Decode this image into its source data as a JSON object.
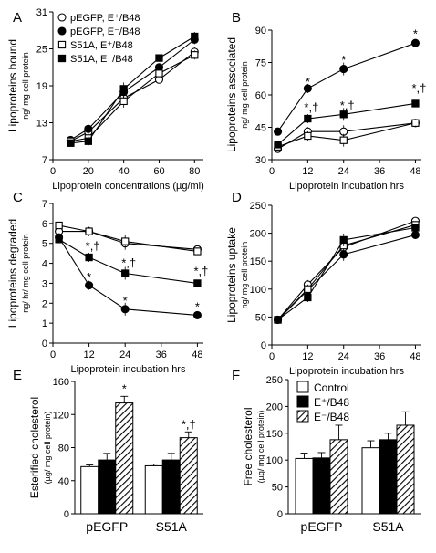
{
  "chart_data": [
    {
      "panel": "A",
      "type": "line",
      "xlabel": "Lipoprotein concentrations (µg/ml)",
      "ylabel": [
        "Lipoproteins bound",
        "ng/ mg cell protein"
      ],
      "xlim": [
        0,
        85
      ],
      "ylim": [
        7,
        31
      ],
      "xticks": [
        0,
        20,
        40,
        60,
        80
      ],
      "yticks": [
        7,
        13,
        19,
        25,
        31
      ],
      "legend_position": "top-left",
      "series": [
        {
          "name": "pEGFP, E⁺/B48",
          "marker": "circle-open",
          "x": [
            10,
            20,
            40,
            60,
            80
          ],
          "y": [
            10.0,
            11.5,
            17.0,
            20.0,
            24.5
          ]
        },
        {
          "name": "pEGFP, E⁻/B48",
          "marker": "circle-filled",
          "x": [
            10,
            20,
            40,
            60,
            80
          ],
          "y": [
            10.2,
            12.0,
            18.0,
            22.0,
            26.5
          ]
        },
        {
          "name": "S51A, E⁺/B48",
          "marker": "square-open",
          "x": [
            10,
            20,
            40,
            60,
            80
          ],
          "y": [
            10.0,
            10.5,
            16.5,
            21.0,
            24.0
          ]
        },
        {
          "name": "S51A, E⁻/B48",
          "marker": "square-filled",
          "x": [
            10,
            20,
            40,
            60,
            80
          ],
          "y": [
            9.7,
            10.0,
            18.5,
            23.5,
            27.0
          ]
        }
      ]
    },
    {
      "panel": "B",
      "type": "line",
      "xlabel": "Lipoprotein incubation hrs",
      "ylabel": [
        "Lipoproteins associated",
        "ng/ mg cell protein"
      ],
      "xlim": [
        0,
        50
      ],
      "ylim": [
        30,
        90
      ],
      "xticks": [
        0,
        12,
        24,
        36,
        48
      ],
      "yticks": [
        30,
        45,
        60,
        75,
        90
      ],
      "series": [
        {
          "name": "pEGFP, E⁺/B48",
          "marker": "circle-open",
          "x": [
            2,
            12,
            24,
            48
          ],
          "y": [
            35,
            43,
            43,
            47
          ]
        },
        {
          "name": "pEGFP, E⁻/B48",
          "marker": "circle-filled",
          "x": [
            2,
            12,
            24,
            48
          ],
          "y": [
            43,
            63,
            72,
            84
          ]
        },
        {
          "name": "S51A, E⁺/B48",
          "marker": "square-open",
          "x": [
            2,
            12,
            24,
            48
          ],
          "y": [
            36,
            41,
            39,
            47
          ]
        },
        {
          "name": "S51A, E⁻/B48",
          "marker": "square-filled",
          "x": [
            2,
            12,
            24,
            48
          ],
          "y": [
            37,
            49,
            51,
            56
          ]
        }
      ],
      "annotations": [
        {
          "text": "*",
          "x": 12,
          "y": 66
        },
        {
          "text": "*",
          "x": 24,
          "y": 76
        },
        {
          "text": "*",
          "x": 48,
          "y": 88
        },
        {
          "text": "*,†",
          "x": 12,
          "y": 54
        },
        {
          "text": "*,†",
          "x": 24,
          "y": 55
        },
        {
          "text": "*,†",
          "x": 48,
          "y": 63
        }
      ]
    },
    {
      "panel": "C",
      "type": "line",
      "xlabel": "Lipoprotein incubation hrs",
      "ylabel": [
        "Lipoproteins degraded",
        "ng/ hr/ mg cell protein"
      ],
      "xlim": [
        0,
        50
      ],
      "ylim": [
        0,
        7
      ],
      "xticks": [
        0,
        12,
        24,
        36,
        48
      ],
      "yticks": [
        0,
        1,
        2,
        3,
        4,
        5,
        6,
        7
      ],
      "series": [
        {
          "name": "pEGFP, E⁺/B48",
          "marker": "circle-open",
          "x": [
            2,
            12,
            24,
            48
          ],
          "y": [
            5.6,
            5.6,
            5.0,
            4.7
          ]
        },
        {
          "name": "pEGFP, E⁻/B48",
          "marker": "circle-filled",
          "x": [
            2,
            12,
            24,
            48
          ],
          "y": [
            5.3,
            2.9,
            1.7,
            1.4
          ]
        },
        {
          "name": "S51A, E⁺/B48",
          "marker": "square-open",
          "x": [
            2,
            12,
            24,
            48
          ],
          "y": [
            5.9,
            5.6,
            5.1,
            4.6
          ]
        },
        {
          "name": "S51A, E⁻/B48",
          "marker": "square-filled",
          "x": [
            2,
            12,
            24,
            48
          ],
          "y": [
            5.2,
            4.3,
            3.5,
            3.0
          ]
        }
      ],
      "annotations": [
        {
          "text": "*,†",
          "x": 12,
          "y": 4.85
        },
        {
          "text": "*,†",
          "x": 24,
          "y": 4.0
        },
        {
          "text": "*,†",
          "x": 48,
          "y": 3.6
        },
        {
          "text": "*",
          "x": 12,
          "y": 3.3
        },
        {
          "text": "*",
          "x": 24,
          "y": 2.1
        },
        {
          "text": "*",
          "x": 48,
          "y": 1.8
        }
      ]
    },
    {
      "panel": "D",
      "type": "line",
      "xlabel": "Lipoprotein incubation hrs",
      "ylabel": [
        "Lipoproteins uptake",
        "ng/ mg cell protein"
      ],
      "xlim": [
        0,
        50
      ],
      "ylim": [
        0,
        250
      ],
      "xticks": [
        0,
        12,
        24,
        36,
        48
      ],
      "yticks": [
        0,
        50,
        100,
        150,
        200,
        250
      ],
      "series": [
        {
          "name": "pEGFP, E⁺/B48",
          "marker": "circle-open",
          "x": [
            2,
            12,
            24,
            48
          ],
          "y": [
            45,
            108,
            175,
            222
          ]
        },
        {
          "name": "pEGFP, E⁻/B48",
          "marker": "circle-filled",
          "x": [
            2,
            12,
            24,
            48
          ],
          "y": [
            45,
            98,
            162,
            197
          ]
        },
        {
          "name": "S51A, E⁺/B48",
          "marker": "square-open",
          "x": [
            2,
            12,
            24,
            48
          ],
          "y": [
            45,
            100,
            178,
            215
          ]
        },
        {
          "name": "S51A, E⁻/B48",
          "marker": "square-filled",
          "x": [
            2,
            12,
            24,
            48
          ],
          "y": [
            45,
            85,
            188,
            210
          ]
        }
      ]
    },
    {
      "panel": "E",
      "type": "bar",
      "ylabel": [
        "Esterified cholesterol",
        "(µg/ mg cell protein)"
      ],
      "ylim": [
        0,
        160
      ],
      "yticks": [
        0,
        40,
        80,
        120,
        160
      ],
      "categories": [
        "pEGFP",
        "S51A"
      ],
      "series": [
        {
          "name": "Control",
          "fill": "white",
          "values": [
            57,
            58
          ],
          "errors": [
            2,
            2
          ]
        },
        {
          "name": "E⁺/B48",
          "fill": "black",
          "values": [
            65,
            65
          ],
          "errors": [
            8,
            8
          ]
        },
        {
          "name": "E⁻/B48",
          "fill": "hatch",
          "values": [
            134,
            92
          ],
          "errors": [
            8,
            7
          ]
        }
      ],
      "annotations": [
        {
          "text": "*",
          "category": "pEGFP",
          "series": "E⁻/B48"
        },
        {
          "text": "*,†",
          "category": "S51A",
          "series": "E⁻/B48"
        }
      ]
    },
    {
      "panel": "F",
      "type": "bar",
      "ylabel": [
        "Free cholesterol",
        "(µg/ mg cell protein)"
      ],
      "ylim": [
        0,
        250
      ],
      "yticks": [
        0,
        50,
        100,
        150,
        200,
        250
      ],
      "legend_position": "top-left",
      "categories": [
        "pEGFP",
        "S51A"
      ],
      "series": [
        {
          "name": "Control",
          "fill": "white",
          "values": [
            103,
            123
          ],
          "errors": [
            10,
            13
          ]
        },
        {
          "name": "E⁺/B48",
          "fill": "black",
          "values": [
            104,
            138
          ],
          "errors": [
            10,
            12
          ]
        },
        {
          "name": "E⁻/B48",
          "fill": "hatch",
          "values": [
            138,
            165
          ],
          "errors": [
            27,
            25
          ]
        }
      ]
    }
  ]
}
